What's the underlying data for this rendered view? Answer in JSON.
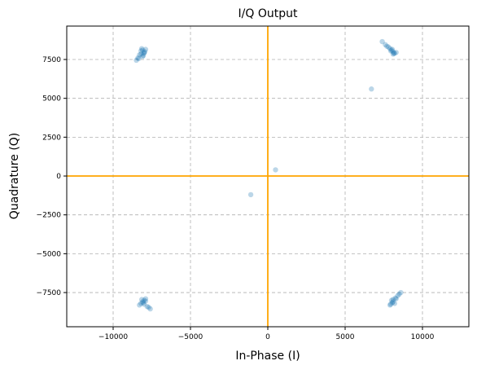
{
  "chart_data": {
    "type": "scatter",
    "title": "I/Q Output",
    "x_label": "In-Phase (I)",
    "y_label": "Quadrature (Q)",
    "series": [
      {
        "color": "#1f77b4",
        "x": [
          -8100,
          -8000,
          -8200,
          -7900,
          -8300,
          -8100,
          -8000,
          -8200,
          -8400,
          -8500,
          -8350,
          -7950,
          -8150,
          -8050,
          8100,
          8000,
          8200,
          7900,
          7800,
          7600,
          7400,
          8300,
          8100,
          7950,
          8150,
          7700,
          8050,
          -8100,
          -8000,
          -8200,
          -7900,
          -8300,
          -8000,
          -7800,
          -7600,
          -7700,
          -8150,
          -8050,
          -7900,
          8100,
          8000,
          8200,
          7900,
          8300,
          8400,
          8500,
          8600,
          8100,
          7950,
          8050,
          8250,
          6700,
          500,
          -1100
        ],
        "values": [
          8100,
          7950,
          8050,
          8150,
          7800,
          7700,
          7900,
          7850,
          7600,
          7450,
          7550,
          8000,
          8200,
          7750,
          8000,
          8100,
          7900,
          8200,
          8300,
          8450,
          8650,
          7950,
          7850,
          8050,
          7900,
          8350,
          8150,
          -8100,
          -8000,
          -8200,
          -7900,
          -8300,
          -8250,
          -8400,
          -8550,
          -8450,
          -7950,
          -8150,
          -8050,
          -8100,
          -8000,
          -8200,
          -8300,
          -7900,
          -7700,
          -7600,
          -7500,
          -7950,
          -8250,
          -8150,
          -7850,
          5600,
          400,
          -1200
        ]
      }
    ],
    "xlim": [
      -13000,
      13000
    ],
    "ylim": [
      -9700,
      9650
    ],
    "xticks": [
      {
        "value": -10000,
        "label": "−10000"
      },
      {
        "value": -5000,
        "label": "−5000"
      },
      0,
      5000,
      10000
    ],
    "yticks": [
      {
        "value": -7500,
        "label": "−7500"
      },
      {
        "value": -5000,
        "label": "−5000"
      },
      {
        "value": -2500,
        "label": "−2500"
      },
      0,
      2500,
      5000,
      7500
    ],
    "grid": true,
    "zero_lines": {
      "x": 0,
      "y": 0,
      "color": "#ffa500"
    }
  }
}
